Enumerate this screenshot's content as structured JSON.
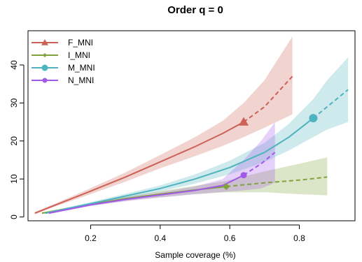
{
  "chart_data": {
    "type": "line",
    "title": "Order q = 0",
    "xlabel": "Sample coverage (%)",
    "ylabel": "",
    "xlim": [
      0.02,
      0.96
    ],
    "ylim": [
      -1,
      49
    ],
    "xticks": [
      0.2,
      0.4,
      0.6,
      0.8
    ],
    "xtick_labels": [
      "0.2",
      "0.4",
      "0.6",
      "0.8"
    ],
    "yticks": [
      0,
      10,
      20,
      30,
      40
    ],
    "ytick_labels": [
      "0",
      "10",
      "20",
      "30",
      "40"
    ],
    "legend_position": "top-left",
    "grid": false,
    "series": [
      {
        "name": "F_MNI",
        "color": "#cd6155",
        "marker": "triangle",
        "interpolated": [
          [
            0.04,
            1
          ],
          [
            0.1,
            3.2
          ],
          [
            0.2,
            6.8
          ],
          [
            0.3,
            10.5
          ],
          [
            0.4,
            14.5
          ],
          [
            0.5,
            18.5
          ],
          [
            0.58,
            22
          ],
          [
            0.64,
            25
          ]
        ],
        "extrapolated": [
          [
            0.64,
            25
          ],
          [
            0.7,
            29
          ],
          [
            0.78,
            37
          ]
        ],
        "reference": [
          0.64,
          25
        ],
        "ci_upper": [
          [
            0.04,
            1.3
          ],
          [
            0.1,
            3.6
          ],
          [
            0.2,
            7.6
          ],
          [
            0.3,
            11.7
          ],
          [
            0.4,
            16.3
          ],
          [
            0.5,
            21
          ],
          [
            0.58,
            25.3
          ],
          [
            0.64,
            30
          ],
          [
            0.7,
            36
          ],
          [
            0.78,
            47.5
          ]
        ],
        "ci_lower": [
          [
            0.04,
            0.7
          ],
          [
            0.1,
            2.8
          ],
          [
            0.2,
            6
          ],
          [
            0.3,
            9.3
          ],
          [
            0.4,
            12.8
          ],
          [
            0.5,
            16
          ],
          [
            0.58,
            18.7
          ],
          [
            0.64,
            21
          ],
          [
            0.7,
            23.5
          ],
          [
            0.78,
            27
          ]
        ]
      },
      {
        "name": "I_MNI",
        "color": "#7fa23a",
        "marker": "diamond",
        "interpolated": [
          [
            0.06,
            1
          ],
          [
            0.2,
            3.3
          ],
          [
            0.3,
            4.8
          ],
          [
            0.4,
            6
          ],
          [
            0.5,
            7.1
          ],
          [
            0.59,
            8
          ]
        ],
        "extrapolated": [
          [
            0.59,
            8
          ],
          [
            0.7,
            9
          ],
          [
            0.8,
            9.7
          ],
          [
            0.88,
            10.5
          ]
        ],
        "reference": [
          0.59,
          8
        ],
        "ci_upper": [
          [
            0.06,
            1.2
          ],
          [
            0.2,
            3.6
          ],
          [
            0.3,
            5.3
          ],
          [
            0.4,
            6.8
          ],
          [
            0.5,
            8.2
          ],
          [
            0.59,
            9.5
          ],
          [
            0.7,
            12
          ],
          [
            0.8,
            14
          ],
          [
            0.88,
            15.7
          ]
        ],
        "ci_lower": [
          [
            0.06,
            0.8
          ],
          [
            0.2,
            3
          ],
          [
            0.3,
            4.3
          ],
          [
            0.4,
            5.2
          ],
          [
            0.5,
            6
          ],
          [
            0.59,
            6.5
          ],
          [
            0.7,
            6.5
          ],
          [
            0.8,
            6
          ],
          [
            0.88,
            5.7
          ]
        ]
      },
      {
        "name": "M_MNI",
        "color": "#4eb3bf",
        "marker": "circle",
        "interpolated": [
          [
            0.07,
            1
          ],
          [
            0.2,
            3.5
          ],
          [
            0.3,
            5.5
          ],
          [
            0.4,
            7.5
          ],
          [
            0.5,
            10
          ],
          [
            0.6,
            13
          ],
          [
            0.7,
            17
          ],
          [
            0.77,
            21
          ],
          [
            0.84,
            26
          ]
        ],
        "extrapolated": [
          [
            0.84,
            26
          ],
          [
            0.88,
            29
          ],
          [
            0.94,
            33.5
          ]
        ],
        "reference": [
          0.84,
          26
        ],
        "ci_upper": [
          [
            0.07,
            1.2
          ],
          [
            0.2,
            3.9
          ],
          [
            0.3,
            6.1
          ],
          [
            0.4,
            8.3
          ],
          [
            0.5,
            11.2
          ],
          [
            0.6,
            14.8
          ],
          [
            0.7,
            19.5
          ],
          [
            0.77,
            24.5
          ],
          [
            0.84,
            31
          ],
          [
            0.88,
            36
          ],
          [
            0.94,
            42
          ]
        ],
        "ci_lower": [
          [
            0.07,
            0.8
          ],
          [
            0.2,
            3.1
          ],
          [
            0.3,
            4.9
          ],
          [
            0.4,
            6.7
          ],
          [
            0.5,
            8.8
          ],
          [
            0.6,
            11.2
          ],
          [
            0.7,
            14.5
          ],
          [
            0.77,
            17.5
          ],
          [
            0.84,
            21
          ],
          [
            0.88,
            23
          ],
          [
            0.94,
            25
          ]
        ]
      },
      {
        "name": "N_MNI",
        "color": "#a259e8",
        "marker": "circle",
        "interpolated": [
          [
            0.08,
            1
          ],
          [
            0.2,
            3.2
          ],
          [
            0.3,
            4.6
          ],
          [
            0.4,
            5.8
          ],
          [
            0.5,
            7
          ],
          [
            0.58,
            8.3
          ],
          [
            0.64,
            11
          ]
        ],
        "extrapolated": [
          [
            0.64,
            11
          ],
          [
            0.69,
            14
          ],
          [
            0.73,
            17
          ]
        ],
        "reference": [
          0.64,
          11
        ],
        "ci_upper": [
          [
            0.08,
            1.2
          ],
          [
            0.2,
            3.5
          ],
          [
            0.3,
            5.1
          ],
          [
            0.4,
            6.5
          ],
          [
            0.5,
            8
          ],
          [
            0.58,
            10
          ],
          [
            0.64,
            15
          ],
          [
            0.69,
            20
          ],
          [
            0.73,
            25
          ]
        ],
        "ci_lower": [
          [
            0.08,
            0.8
          ],
          [
            0.2,
            2.9
          ],
          [
            0.3,
            4.1
          ],
          [
            0.4,
            5.1
          ],
          [
            0.5,
            6
          ],
          [
            0.58,
            6.6
          ],
          [
            0.64,
            7
          ],
          [
            0.69,
            7.5
          ],
          [
            0.73,
            9
          ]
        ]
      }
    ]
  }
}
